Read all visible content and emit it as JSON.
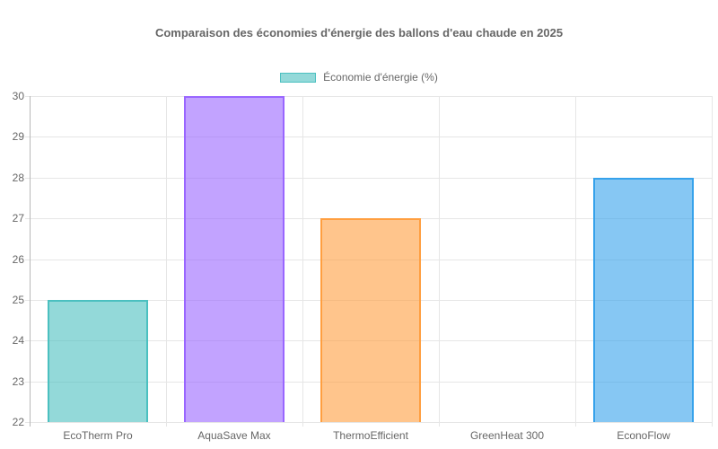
{
  "chart_data": {
    "type": "bar",
    "title": "Comparaison des économies d'énergie des ballons d'eau chaude en 2025",
    "legend_label": "Économie d'énergie (%)",
    "legend_swatch_fill": "rgba(75,192,192,0.6)",
    "legend_swatch_border": "#4bc0c0",
    "categories": [
      "EcoTherm Pro",
      "AquaSave Max",
      "ThermoEfficient",
      "GreenHeat 300",
      "EconoFlow"
    ],
    "series": [
      {
        "name": "Économie d'énergie (%)",
        "values": [
          25,
          30,
          27,
          22,
          28
        ],
        "fills": [
          "rgba(75,192,192,0.6)",
          "rgba(153,102,255,0.6)",
          "rgba(255,159,64,0.6)",
          "rgba(255,99,132,0.6)",
          "rgba(54,162,235,0.6)"
        ],
        "borders": [
          "#4bc0c0",
          "#9966ff",
          "#ff9f40",
          "#ff6384",
          "#36a2eb"
        ]
      }
    ],
    "xlabel": "",
    "ylabel": "",
    "ylim": [
      22,
      30
    ],
    "ytick_step": 1,
    "yticks": [
      22,
      23,
      24,
      25,
      26,
      27,
      28,
      29,
      30
    ],
    "grid": true,
    "legend_position": "top",
    "colors": {
      "grid": "#e6e6e6",
      "axis": "#b8b8b8",
      "text": "#666666",
      "background": "#ffffff"
    }
  }
}
